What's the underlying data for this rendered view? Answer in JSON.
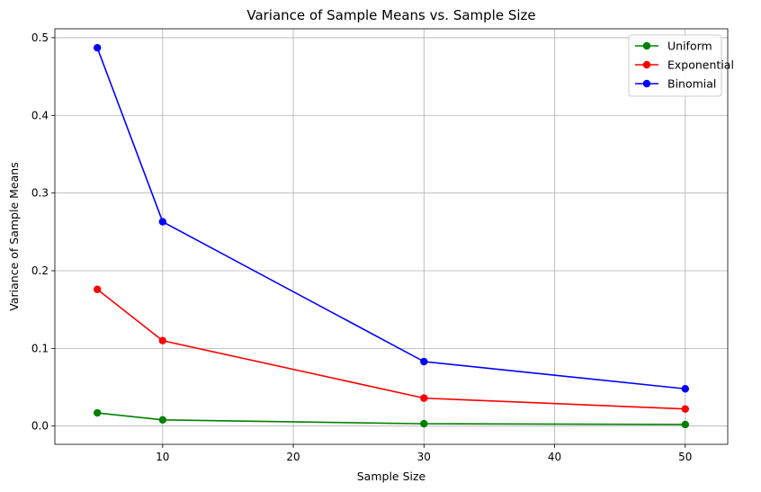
{
  "chart_data": {
    "type": "line",
    "title": "Variance of Sample Means vs. Sample Size",
    "xlabel": "Sample Size",
    "ylabel": "Variance of Sample Means",
    "xlim": [
      1.75,
      53.25
    ],
    "ylim": [
      -0.0235,
      0.5115
    ],
    "xticks": [
      10,
      20,
      30,
      40,
      50
    ],
    "yticks": [
      0.0,
      0.1,
      0.2,
      0.3,
      0.4,
      0.5
    ],
    "ytick_labels": [
      "0.0",
      "0.1",
      "0.2",
      "0.3",
      "0.4",
      "0.5"
    ],
    "grid": true,
    "legend_position": "top-right",
    "x": [
      5,
      10,
      30,
      50
    ],
    "series": [
      {
        "name": "Uniform",
        "color": "#008000",
        "values": [
          0.017,
          0.008,
          0.003,
          0.002
        ]
      },
      {
        "name": "Exponential",
        "color": "#ff0000",
        "values": [
          0.176,
          0.11,
          0.036,
          0.022
        ]
      },
      {
        "name": "Binomial",
        "color": "#0000ff",
        "values": [
          0.487,
          0.263,
          0.083,
          0.048
        ]
      }
    ]
  }
}
